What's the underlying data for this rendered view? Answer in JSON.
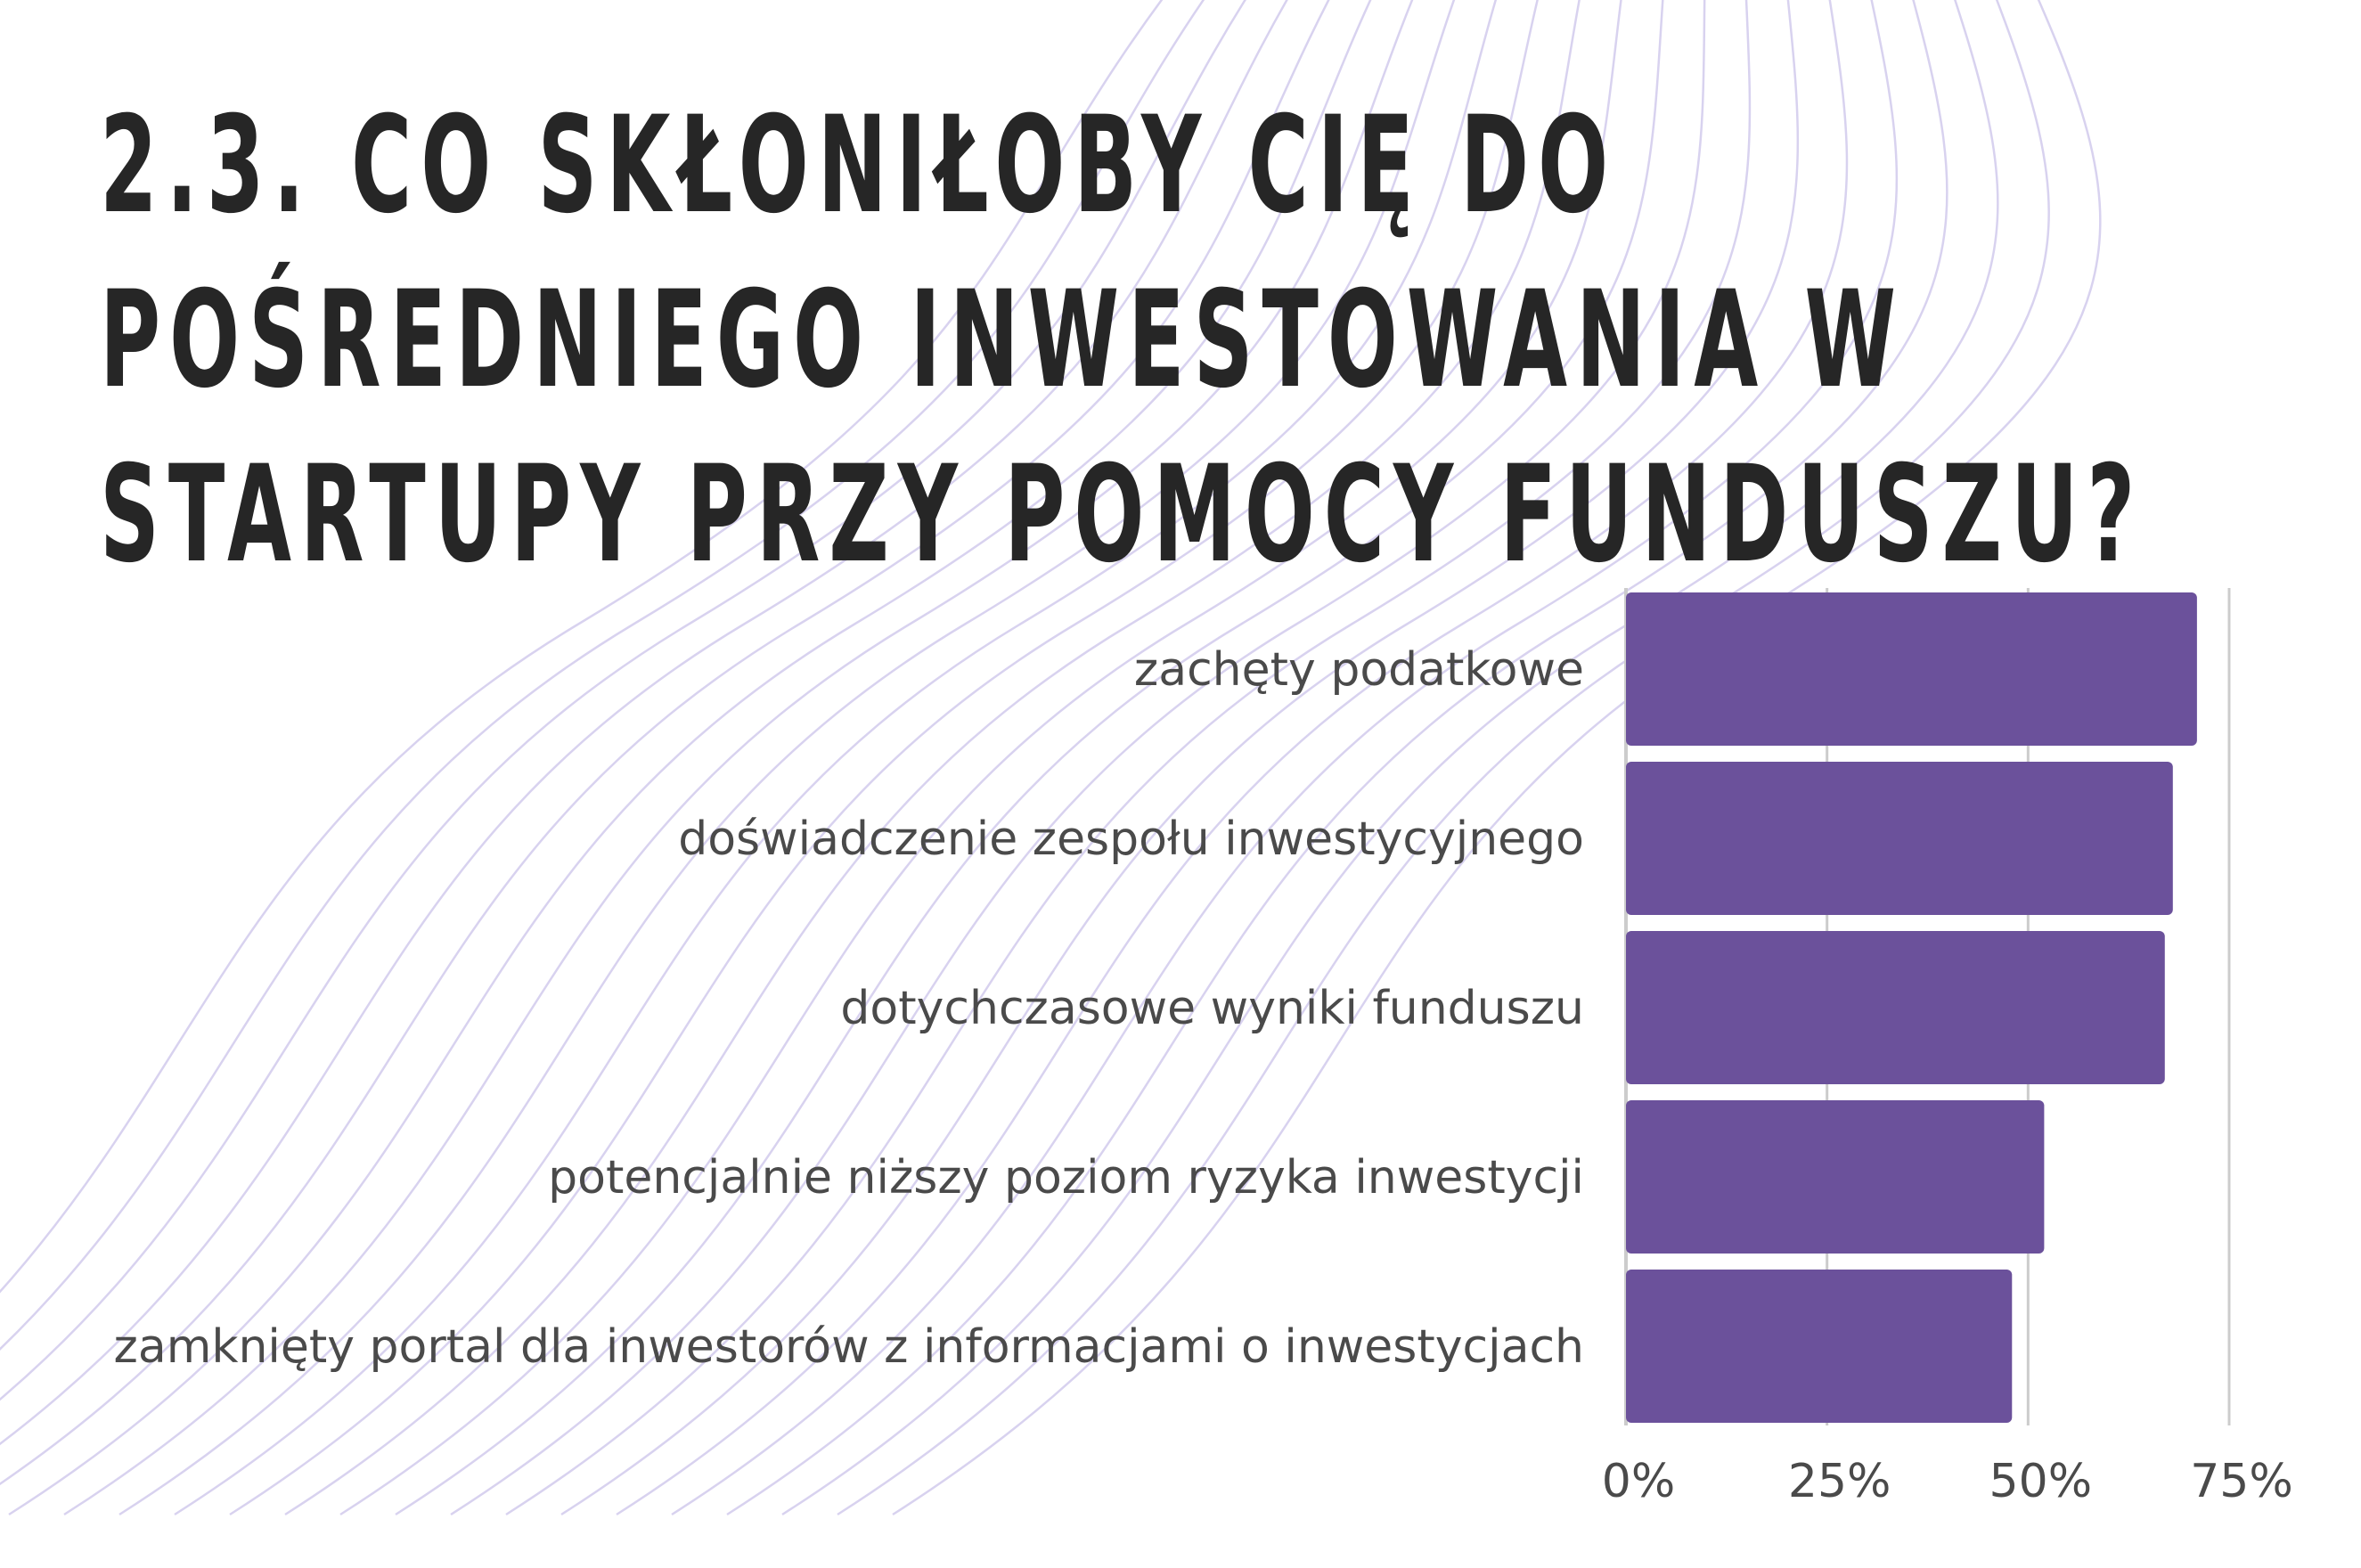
{
  "title": {
    "line1": "2.3. CO SKŁONIŁOBY CIĘ DO",
    "line2": "POŚREDNIEGO INWESTOWANIA W",
    "line3": "STARTUPY PRZY POMOCY FUNDUSZU?"
  },
  "colors": {
    "bar": "#6b519b",
    "gridline": "#cccccc",
    "title": "#262626",
    "label": "#4a4a4a",
    "wave": "#d8d2ef"
  },
  "chart_data": {
    "type": "bar",
    "orientation": "horizontal",
    "title": "",
    "xlabel": "",
    "ylabel": "",
    "categories": [
      "zachęty podatkowe",
      "doświadczenie zespołu inwestycyjnego",
      "dotychczasowe wyniki funduszu",
      "potencjalnie niższy poziom ryzyka inwestycji",
      "zamknięty portal dla inwestorów z informacjami o inwestycjach"
    ],
    "values": [
      71,
      68,
      67,
      52,
      48
    ],
    "unit": "%",
    "xlim": [
      0,
      75
    ],
    "ticks": [
      0,
      25,
      50,
      75
    ],
    "tick_labels": [
      "0%",
      "25%",
      "50%",
      "75%"
    ],
    "grid": true
  }
}
